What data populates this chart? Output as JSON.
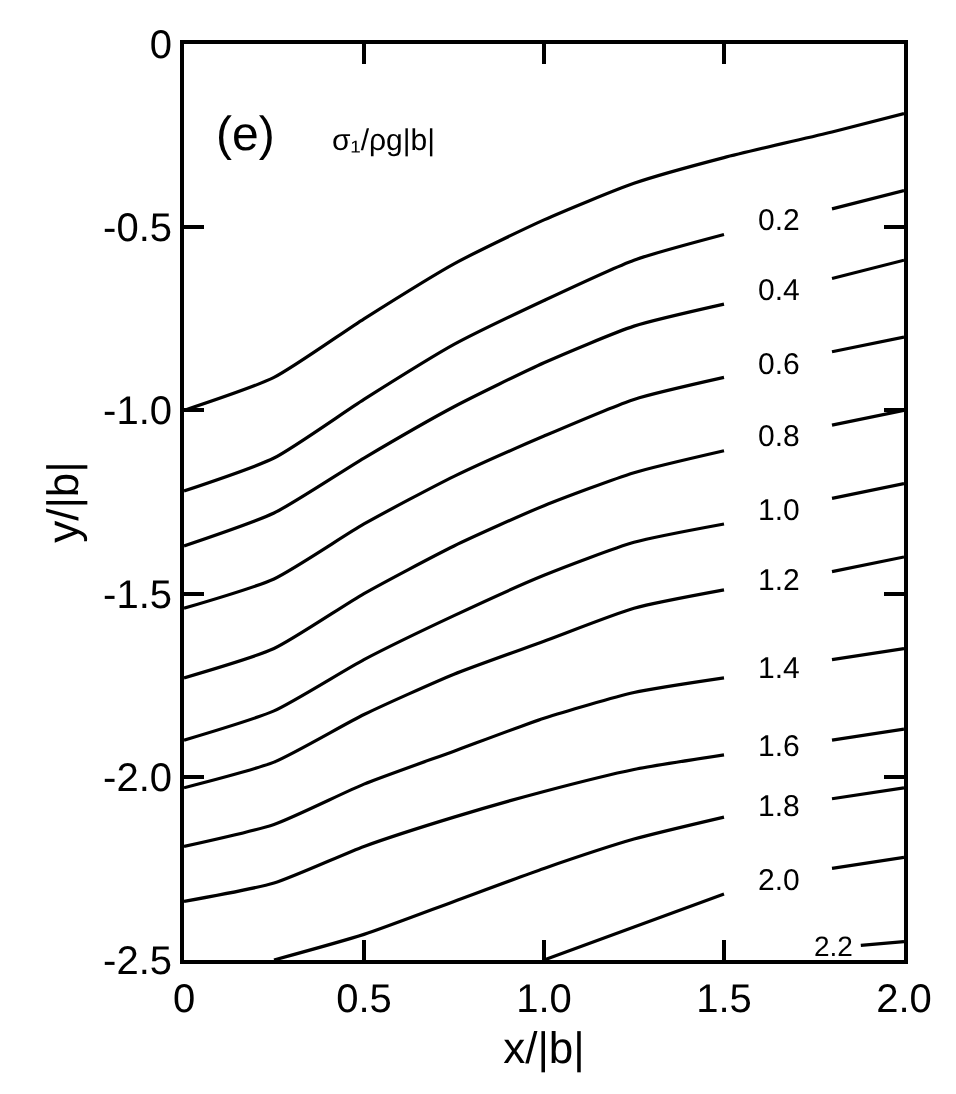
{
  "chart_data": {
    "type": "line",
    "xlabel": "x/|b|",
    "ylabel": "y/|b|",
    "annotations": [
      "(e)",
      "σ₁/ρg|b|"
    ],
    "xlim": [
      0,
      2
    ],
    "xticks": [
      0,
      0.5,
      {
        "value": 1,
        "label": "1.0"
      },
      1.5,
      {
        "value": 2,
        "label": "2.0"
      }
    ],
    "ylim": [
      -2.5,
      0
    ],
    "yticks": [
      {
        "value": -2.5,
        "label": "-2.5"
      },
      {
        "value": -2,
        "label": "-2.0"
      },
      {
        "value": -1.5,
        "label": "-1.5"
      },
      {
        "value": -1,
        "label": "-1.0"
      },
      {
        "value": -0.5,
        "label": "-0.5"
      },
      0
    ],
    "grid": false,
    "legend": false,
    "marker": "none",
    "line_style": "solid",
    "series": [
      {
        "color": "#000000",
        "x": [
          0,
          0.25,
          0.5,
          0.75,
          1,
          1.25,
          1.5,
          1.8,
          2
        ],
        "values": [
          -1,
          -0.91,
          -0.75,
          -0.6,
          -0.48,
          -0.38,
          -0.31,
          -0.24,
          -0.19
        ]
      },
      {
        "name": "0.2",
        "color": "#000000",
        "x": [
          0,
          0.25,
          0.5,
          0.75,
          1,
          1.25,
          1.5,
          1.65,
          1.8,
          2
        ],
        "values": [
          -1.22,
          -1.13,
          -0.97,
          -0.82,
          -0.7,
          -0.59,
          -0.52,
          null,
          -0.45,
          -0.4
        ]
      },
      {
        "name": "0.4",
        "color": "#000000",
        "x": [
          0,
          0.25,
          0.5,
          0.75,
          1,
          1.25,
          1.5,
          1.65,
          1.8,
          2
        ],
        "values": [
          -1.37,
          -1.28,
          -1.13,
          -0.99,
          -0.87,
          -0.77,
          -0.71,
          null,
          -0.64,
          -0.59
        ]
      },
      {
        "name": "0.6",
        "color": "#000000",
        "x": [
          0,
          0.25,
          0.5,
          0.75,
          1,
          1.25,
          1.5,
          1.65,
          1.8,
          2
        ],
        "values": [
          -1.54,
          -1.46,
          -1.31,
          -1.18,
          -1.07,
          -0.97,
          -0.91,
          null,
          -0.84,
          -0.8
        ]
      },
      {
        "name": "0.8",
        "color": "#000000",
        "x": [
          0,
          0.25,
          0.5,
          0.75,
          1,
          1.25,
          1.5,
          1.65,
          1.8,
          2
        ],
        "values": [
          -1.73,
          -1.65,
          -1.5,
          -1.37,
          -1.26,
          -1.17,
          -1.11,
          null,
          -1.04,
          -1
        ]
      },
      {
        "name": "1.0",
        "color": "#000000",
        "x": [
          0,
          0.25,
          0.5,
          0.75,
          1,
          1.25,
          1.5,
          1.65,
          1.8,
          2
        ],
        "values": [
          -1.9,
          -1.82,
          -1.68,
          -1.56,
          -1.45,
          -1.36,
          -1.31,
          null,
          -1.24,
          -1.2
        ]
      },
      {
        "name": "1.2",
        "color": "#000000",
        "x": [
          0,
          0.25,
          0.5,
          0.75,
          1,
          1.25,
          1.5,
          1.65,
          1.8,
          2
        ],
        "values": [
          -2.03,
          -1.96,
          -1.83,
          -1.72,
          -1.63,
          -1.54,
          -1.49,
          null,
          -1.44,
          -1.4
        ]
      },
      {
        "name": "1.4",
        "color": "#000000",
        "x": [
          0,
          0.25,
          0.5,
          0.75,
          1,
          1.25,
          1.5,
          1.65,
          1.8,
          2
        ],
        "values": [
          -2.19,
          -2.13,
          -2.02,
          -1.93,
          -1.84,
          -1.77,
          -1.73,
          null,
          -1.68,
          -1.65
        ]
      },
      {
        "name": "1.6",
        "color": "#000000",
        "x": [
          0,
          0.25,
          0.5,
          0.75,
          1,
          1.25,
          1.5,
          1.65,
          1.8,
          2
        ],
        "values": [
          -2.34,
          -2.29,
          -2.19,
          -2.11,
          -2.04,
          -1.98,
          -1.94,
          null,
          -1.9,
          -1.87
        ]
      },
      {
        "name": "1.8",
        "color": "#000000",
        "x": [
          0.25,
          0.5,
          0.75,
          1,
          1.25,
          1.5,
          1.65,
          1.8,
          2
        ],
        "values": [
          -2.5,
          -2.43,
          -2.34,
          -2.25,
          -2.17,
          -2.11,
          null,
          -2.06,
          -2.03
        ]
      },
      {
        "name": "2.0",
        "color": "#000000",
        "x": [
          1,
          1.25,
          1.5,
          1.65,
          1.8,
          2
        ],
        "values": [
          -2.5,
          -2.41,
          -2.32,
          null,
          -2.25,
          -2.22
        ]
      },
      {
        "name": "2.2",
        "color": "#000000",
        "x": [
          1.88,
          2
        ],
        "values": [
          -2.46,
          -2.45
        ]
      }
    ]
  }
}
